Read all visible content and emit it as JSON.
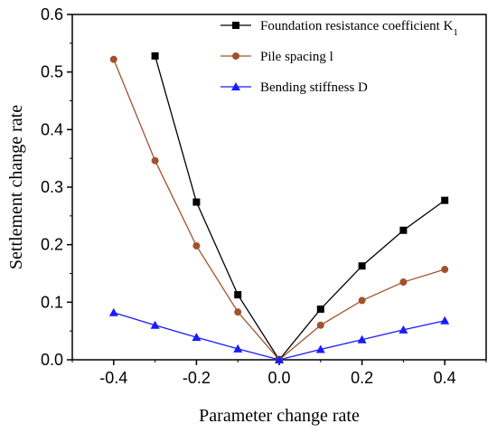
{
  "chart_data": {
    "type": "line",
    "title": "",
    "xlabel": "Parameter change rate",
    "ylabel": "Settlement change rate",
    "xlim": [
      -0.5,
      0.5
    ],
    "ylim": [
      0.0,
      0.6
    ],
    "x_ticks": [
      "-0.4",
      "-0.2",
      "0.0",
      "0.2",
      "0.4"
    ],
    "y_ticks": [
      "0.0",
      "0.1",
      "0.2",
      "0.3",
      "0.4",
      "0.5",
      "0.6"
    ],
    "grid": false,
    "legend_position": "top-right",
    "series": [
      {
        "name": "Foundation resistance coefficient K",
        "name_subscript": "1",
        "color": "#000000",
        "marker": "square",
        "x": [
          -0.3,
          -0.2,
          -0.1,
          0.0,
          0.1,
          0.2,
          0.3,
          0.4
        ],
        "y": [
          0.528,
          0.274,
          0.113,
          0.0,
          0.088,
          0.163,
          0.225,
          0.277
        ]
      },
      {
        "name": "Pile spacing l",
        "color": "#a0522d",
        "marker": "circle",
        "x": [
          -0.4,
          -0.3,
          -0.2,
          -0.1,
          0.0,
          0.1,
          0.2,
          0.3,
          0.4
        ],
        "y": [
          0.522,
          0.346,
          0.198,
          0.083,
          0.0,
          0.06,
          0.103,
          0.135,
          0.157
        ]
      },
      {
        "name": "Bending stiffness D",
        "color": "#1a1aff",
        "marker": "triangle",
        "x": [
          -0.4,
          -0.3,
          -0.2,
          -0.1,
          0.0,
          0.1,
          0.2,
          0.3,
          0.4
        ],
        "y": [
          0.082,
          0.06,
          0.039,
          0.019,
          0.0,
          0.018,
          0.035,
          0.052,
          0.068
        ]
      }
    ]
  }
}
